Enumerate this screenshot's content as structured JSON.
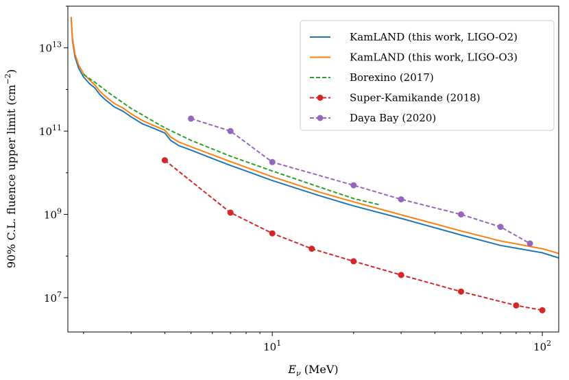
{
  "chart_data": {
    "type": "line",
    "xscale": "log",
    "yscale": "log",
    "xlim": [
      1.75,
      115
    ],
    "ylim": [
      1500000,
      100000000000000
    ],
    "xlabel_base": "E",
    "xlabel_sub": "ν",
    "xlabel_unit": " (MeV)",
    "ylabel": "90% C.L. fluence upper limit (cm",
    "ylabel_sup": "−2",
    "ylabel_end": ")",
    "xticks": [
      {
        "value": 10,
        "base": "10",
        "exp": "1"
      },
      {
        "value": 100,
        "base": "10",
        "exp": "2"
      }
    ],
    "yticks": [
      {
        "value": 10000000,
        "base": "10",
        "exp": "7"
      },
      {
        "value": 1000000000,
        "base": "10",
        "exp": "9"
      },
      {
        "value": 100000000000,
        "base": "10",
        "exp": "11"
      },
      {
        "value": 10000000000000,
        "base": "10",
        "exp": "13"
      }
    ],
    "legend_position": "top-right",
    "series": [
      {
        "name": "KamLAND (this work, LIGO-O2)",
        "color": "#1f77b4",
        "style": "solid",
        "marker": "none",
        "x": [
          1.8,
          1.82,
          1.86,
          1.92,
          2.0,
          2.1,
          2.2,
          2.3,
          2.4,
          2.6,
          2.8,
          3.0,
          3.3,
          3.6,
          4.0,
          4.2,
          4.5,
          5,
          6,
          7,
          8,
          10,
          15,
          20,
          30,
          50,
          70,
          100,
          115
        ],
        "y": [
          55000000000000,
          15000000000000,
          6000000000000,
          3200000000000,
          2000000000000,
          1400000000000,
          1100000000000,
          750000000000,
          580000000000,
          380000000000,
          300000000000,
          220000000000,
          150000000000,
          120000000000,
          90000000000,
          60000000000,
          45000000000,
          35000000000,
          22000000000,
          15000000000,
          11000000000,
          6500000000,
          2800000000,
          1600000000,
          800000000,
          320000000,
          180000000,
          120000000,
          90000000
        ]
      },
      {
        "name": "KamLAND (this work, LIGO-O3)",
        "color": "#ff7f0e",
        "style": "solid",
        "marker": "none",
        "x": [
          1.8,
          1.82,
          1.86,
          1.92,
          2.0,
          2.1,
          2.2,
          2.3,
          2.4,
          2.6,
          2.8,
          3.0,
          3.3,
          3.6,
          4.0,
          4.2,
          4.5,
          5,
          6,
          7,
          8,
          10,
          15,
          20,
          30,
          50,
          70,
          100,
          115
        ],
        "y": [
          55000000000000,
          17000000000000,
          7000000000000,
          3800000000000,
          2400000000000,
          1700000000000,
          1300000000000,
          900000000000,
          700000000000,
          460000000000,
          360000000000,
          260000000000,
          180000000000,
          140000000000,
          105000000000,
          72000000000,
          55000000000,
          42000000000,
          27000000000,
          18500000000,
          13500000000,
          8000000000,
          3400000000,
          2000000000,
          980000000,
          400000000,
          230000000,
          150000000,
          115000000
        ]
      },
      {
        "name": "Borexino (2017)",
        "color": "#2ca02c",
        "style": "dashed",
        "marker": "none",
        "x": [
          2.0,
          2.2,
          2.5,
          3.0,
          4.0,
          5.0,
          7.0,
          10.0,
          15.0,
          20.0,
          25.0
        ],
        "y": [
          2300000000000,
          1500000000000,
          800000000000,
          350000000000,
          120000000000,
          60000000000,
          25000000000,
          11000000000,
          4500000000,
          2400000000,
          1700000000
        ]
      },
      {
        "name": "Super-Kamikande (2018)",
        "color": "#d62728",
        "style": "dashed",
        "marker": "circle",
        "x": [
          4,
          7,
          10,
          14,
          20,
          30,
          50,
          80,
          100
        ],
        "y": [
          20000000000,
          1100000000,
          350000000,
          150000000,
          75000000,
          35000000,
          14000000,
          6500000,
          5000000
        ]
      },
      {
        "name": "Daya Bay (2020)",
        "color": "#9467bd",
        "style": "dashed",
        "marker": "circle",
        "x": [
          5,
          7,
          10,
          20,
          30,
          50,
          70,
          90
        ],
        "y": [
          200000000000,
          100000000000,
          18000000000,
          5000000000,
          2300000000,
          1000000000,
          500000000,
          200000000
        ]
      }
    ]
  }
}
